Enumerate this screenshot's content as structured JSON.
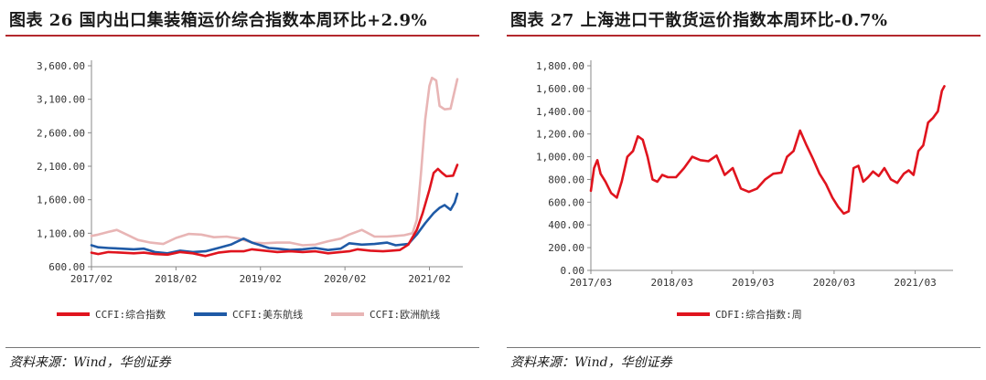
{
  "chart_data": [
    {
      "type": "line",
      "title": "图表 26 国内出口集装箱运价综合指数本周环比+2.9%",
      "xlabel": "",
      "ylabel": "",
      "x_range": [
        2017.0,
        2021.33
      ],
      "ylim": [
        600,
        3600
      ],
      "y_ticks": [
        600,
        1100,
        1600,
        2100,
        2600,
        3100,
        3600
      ],
      "y_tick_labels": [
        "600.00",
        "1,100.00",
        "1,600.00",
        "2,100.00",
        "2,600.00",
        "3,100.00",
        "3,600.00"
      ],
      "x_ticks": [
        2017.0,
        2018.0,
        2019.0,
        2020.0,
        2021.0
      ],
      "x_tick_labels": [
        "2017/02",
        "2018/02",
        "2019/02",
        "2020/02",
        "2021/02"
      ],
      "legend_position": "bottom",
      "source": "资料来源：Wind，华创证券",
      "series": [
        {
          "name": "CCFI:综合指数",
          "color": "#e0141e",
          "x": [
            2017.0,
            2017.08,
            2017.2,
            2017.35,
            2017.5,
            2017.62,
            2017.75,
            2017.9,
            2018.05,
            2018.2,
            2018.35,
            2018.5,
            2018.65,
            2018.8,
            2018.9,
            2019.05,
            2019.2,
            2019.35,
            2019.5,
            2019.65,
            2019.8,
            2019.95,
            2020.05,
            2020.15,
            2020.3,
            2020.45,
            2020.55,
            2020.65,
            2020.75,
            2020.85,
            2020.92,
            2021.0,
            2021.05,
            2021.1,
            2021.15,
            2021.2,
            2021.28,
            2021.33
          ],
          "y": [
            810,
            790,
            820,
            810,
            800,
            810,
            790,
            780,
            820,
            800,
            760,
            810,
            830,
            830,
            860,
            840,
            820,
            830,
            820,
            830,
            800,
            820,
            830,
            860,
            840,
            830,
            840,
            850,
            930,
            1150,
            1400,
            1750,
            2000,
            2060,
            2000,
            1950,
            1960,
            2120
          ]
        },
        {
          "name": "CCFI:美东航线",
          "color": "#1f5aa6",
          "x": [
            2017.0,
            2017.08,
            2017.2,
            2017.35,
            2017.5,
            2017.62,
            2017.75,
            2017.9,
            2018.05,
            2018.2,
            2018.35,
            2018.5,
            2018.65,
            2018.7,
            2018.8,
            2018.9,
            2019.0,
            2019.1,
            2019.2,
            2019.35,
            2019.5,
            2019.65,
            2019.8,
            2019.95,
            2020.05,
            2020.2,
            2020.35,
            2020.5,
            2020.6,
            2020.75,
            2020.85,
            2020.95,
            2021.05,
            2021.12,
            2021.18,
            2021.25,
            2021.3,
            2021.33
          ],
          "y": [
            920,
            890,
            880,
            870,
            860,
            870,
            820,
            800,
            840,
            820,
            830,
            880,
            930,
            960,
            1020,
            960,
            920,
            880,
            870,
            850,
            860,
            880,
            850,
            870,
            950,
            930,
            940,
            960,
            920,
            940,
            1080,
            1250,
            1400,
            1480,
            1520,
            1450,
            1560,
            1690
          ]
        },
        {
          "name": "CCFI:欧洲航线",
          "color": "#e8b5b5",
          "x": [
            2017.0,
            2017.08,
            2017.2,
            2017.3,
            2017.4,
            2017.55,
            2017.7,
            2017.85,
            2018.0,
            2018.15,
            2018.3,
            2018.45,
            2018.6,
            2018.75,
            2018.9,
            2019.05,
            2019.2,
            2019.35,
            2019.5,
            2019.65,
            2019.8,
            2019.95,
            2020.05,
            2020.2,
            2020.35,
            2020.5,
            2020.6,
            2020.7,
            2020.8,
            2020.85,
            2020.9,
            2020.95,
            2021.0,
            2021.03,
            2021.08,
            2021.12,
            2021.18,
            2021.25,
            2021.33
          ],
          "y": [
            1060,
            1080,
            1120,
            1150,
            1090,
            1000,
            960,
            940,
            1030,
            1090,
            1080,
            1040,
            1050,
            1020,
            960,
            950,
            960,
            960,
            920,
            930,
            980,
            1020,
            1080,
            1150,
            1050,
            1050,
            1060,
            1070,
            1100,
            1300,
            2000,
            2800,
            3300,
            3420,
            3380,
            3000,
            2950,
            2960,
            3400
          ]
        }
      ]
    },
    {
      "type": "line",
      "title": "图表 27 上海进口干散货运价指数本周环比-0.7%",
      "xlabel": "",
      "ylabel": "",
      "x_range": [
        2017.0,
        2021.4
      ],
      "ylim": [
        0,
        1800
      ],
      "y_ticks": [
        0,
        200,
        400,
        600,
        800,
        1000,
        1200,
        1400,
        1600,
        1800
      ],
      "y_tick_labels": [
        "0.00",
        "200.00",
        "400.00",
        "600.00",
        "800.00",
        "1,000.00",
        "1,200.00",
        "1,400.00",
        "1,600.00",
        "1,800.00"
      ],
      "x_ticks": [
        2017.0,
        2018.0,
        2019.0,
        2020.0,
        2021.0
      ],
      "x_tick_labels": [
        "2017/03",
        "2018/03",
        "2019/03",
        "2020/03",
        "2021/03"
      ],
      "legend_position": "bottom",
      "source": "资料来源：Wind，华创证券",
      "series": [
        {
          "name": "CDFI:综合指数:周",
          "color": "#e0141e",
          "x": [
            2017.0,
            2017.04,
            2017.08,
            2017.12,
            2017.18,
            2017.25,
            2017.32,
            2017.38,
            2017.45,
            2017.52,
            2017.58,
            2017.64,
            2017.7,
            2017.76,
            2017.82,
            2017.88,
            2017.95,
            2018.05,
            2018.15,
            2018.25,
            2018.35,
            2018.45,
            2018.55,
            2018.65,
            2018.75,
            2018.85,
            2018.95,
            2019.05,
            2019.15,
            2019.25,
            2019.35,
            2019.42,
            2019.5,
            2019.58,
            2019.66,
            2019.74,
            2019.82,
            2019.9,
            2019.98,
            2020.05,
            2020.12,
            2020.18,
            2020.24,
            2020.3,
            2020.36,
            2020.42,
            2020.48,
            2020.55,
            2020.62,
            2020.7,
            2020.78,
            2020.86,
            2020.92,
            2020.98,
            2021.04,
            2021.1,
            2021.16,
            2021.22,
            2021.28,
            2021.33,
            2021.36
          ],
          "y": [
            700,
            900,
            970,
            850,
            780,
            680,
            640,
            780,
            1000,
            1050,
            1180,
            1150,
            1000,
            800,
            780,
            840,
            820,
            820,
            900,
            1000,
            970,
            960,
            1010,
            840,
            900,
            720,
            690,
            720,
            800,
            850,
            860,
            1000,
            1050,
            1230,
            1100,
            980,
            850,
            760,
            640,
            560,
            500,
            520,
            900,
            920,
            780,
            820,
            870,
            830,
            900,
            800,
            770,
            850,
            880,
            840,
            1050,
            1100,
            1300,
            1340,
            1400,
            1580,
            1620
          ]
        }
      ]
    }
  ]
}
